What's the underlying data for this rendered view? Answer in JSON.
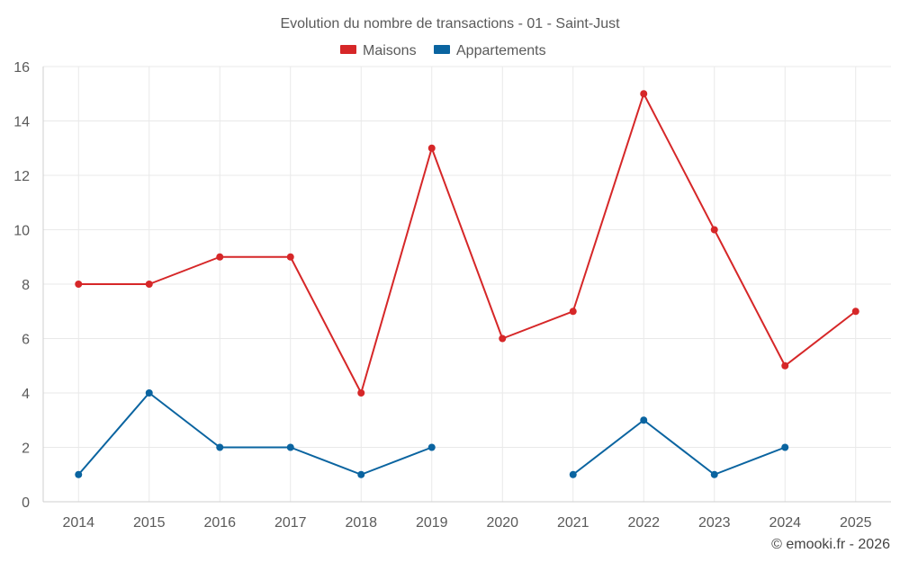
{
  "chart_data": {
    "type": "line",
    "title": "Evolution du nombre de transactions - 01 - Saint-Just",
    "categories": [
      "2014",
      "2015",
      "2016",
      "2017",
      "2018",
      "2019",
      "2020",
      "2021",
      "2022",
      "2023",
      "2024",
      "2025"
    ],
    "yticks": [
      0,
      2,
      4,
      6,
      8,
      10,
      12,
      14,
      16
    ],
    "ylim": [
      0,
      16
    ],
    "grid": true,
    "legend_position": "top-center",
    "series": [
      {
        "name": "Maisons",
        "color": "#d62728",
        "values": [
          8,
          8,
          9,
          9,
          4,
          13,
          6,
          7,
          15,
          10,
          5,
          7
        ]
      },
      {
        "name": "Appartements",
        "color": "#0a64a0",
        "values": [
          1,
          4,
          2,
          2,
          1,
          2,
          null,
          1,
          3,
          1,
          2,
          null
        ]
      }
    ]
  },
  "credit": "© emooki.fr - 2026"
}
